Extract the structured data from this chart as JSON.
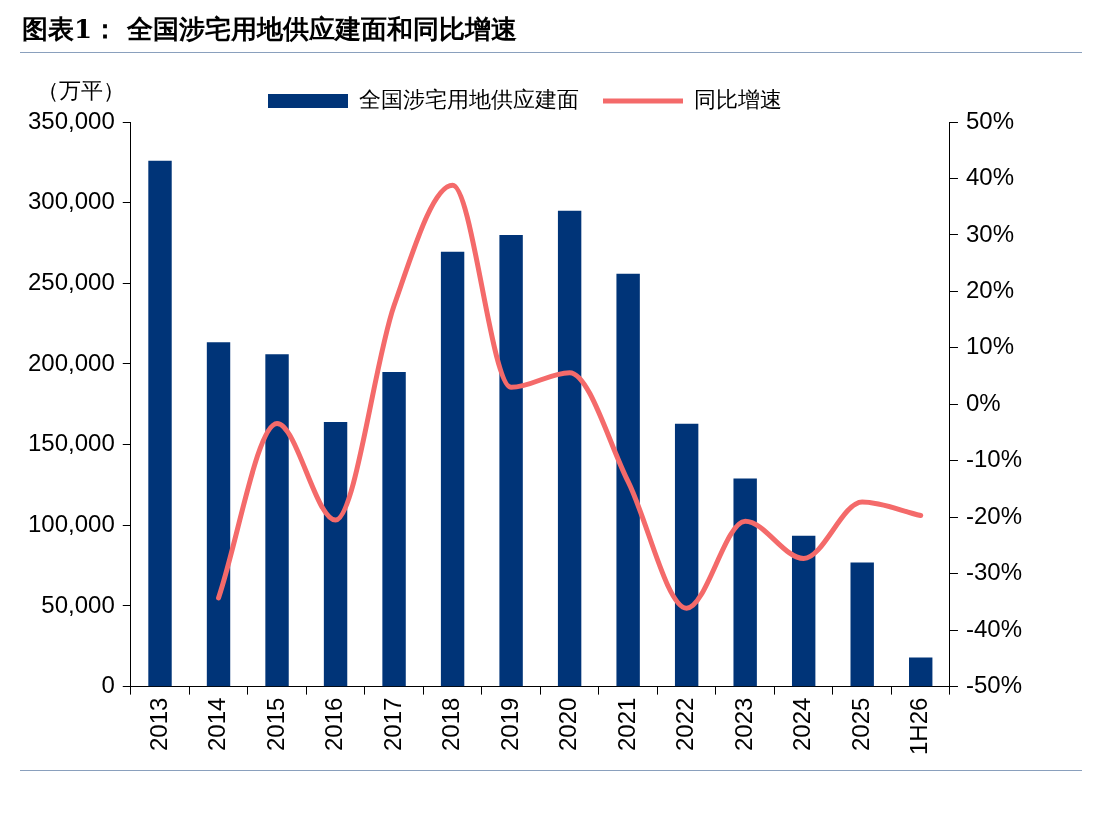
{
  "chart_data": {
    "type": "bar",
    "title": "图表1：  全国涉宅用地供应建面和同比增速",
    "ylabel": "（万平）",
    "categories": [
      "2013",
      "2014",
      "2015",
      "2016",
      "2017",
      "2018",
      "2019",
      "2020",
      "2021",
      "2022",
      "2023",
      "2024",
      "2025",
      "1H26"
    ],
    "series": [
      {
        "name": "全国涉宅用地供应建面",
        "color": "#003478",
        "values": [
          326000,
          213500,
          206000,
          164000,
          195000,
          269500,
          280000,
          295000,
          256000,
          163000,
          129000,
          93500,
          77000,
          18000
        ]
      },
      {
        "name": "同比增速",
        "type": "line",
        "axis": "y2",
        "color": "#f46a6a",
        "values": [
          null,
          -34.3,
          -3.4,
          -20.5,
          17.5,
          38.8,
          3,
          5.6,
          -13.7,
          -36.1,
          -20.7,
          -27.3,
          -17.3,
          -19.7
        ]
      }
    ],
    "ylim": [
      0,
      350000
    ],
    "yticks": [
      {
        "value": 0,
        "label": "0"
      },
      {
        "value": 50000,
        "label": "50,000"
      },
      {
        "value": 100000,
        "label": "100,000"
      },
      {
        "value": 150000,
        "label": "150,000"
      },
      {
        "value": 200000,
        "label": "200,000"
      },
      {
        "value": 250000,
        "label": "250,000"
      },
      {
        "value": 300000,
        "label": "300,000"
      },
      {
        "value": 350000,
        "label": "350,000"
      }
    ],
    "y2lim": [
      -50,
      50
    ],
    "y2ticks": [
      {
        "value": -50,
        "label": "-50%"
      },
      {
        "value": -40,
        "label": "-40%"
      },
      {
        "value": -30,
        "label": "-30%"
      },
      {
        "value": -20,
        "label": "-20%"
      },
      {
        "value": -10,
        "label": "-10%"
      },
      {
        "value": 0,
        "label": "0%"
      },
      {
        "value": 10,
        "label": "10%"
      },
      {
        "value": 20,
        "label": "20%"
      },
      {
        "value": 30,
        "label": "30%"
      },
      {
        "value": 40,
        "label": "40%"
      },
      {
        "value": 50,
        "label": "50%"
      }
    ],
    "legend": "top",
    "grid": false
  }
}
